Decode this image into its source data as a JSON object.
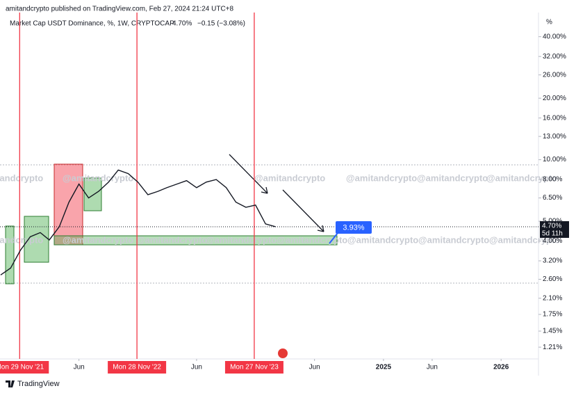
{
  "header": "amitandcrypto published on TradingView.com, Feb 27, 2024 21:24 UTC+8",
  "footer": "TradingView",
  "watermark": "@amitandcrypto",
  "chart_data": {
    "type": "line",
    "legend_text": "Market Cap USDT Dominance, %, 1W, CRYPTOCAP",
    "last_value": "4.70%",
    "change": "−0.15 (−3.08%)",
    "y_unit": "%",
    "price_tag": "4.70%",
    "countdown": "5d 11h",
    "target_label": "3.93%",
    "log_scale": true,
    "color": "#131722",
    "x": [
      "2021-10",
      "2021-11",
      "2021-12",
      "2022-01",
      "2022-02",
      "2022-03",
      "2022-04",
      "2022-05",
      "2022-06",
      "2022-07",
      "2022-08",
      "2022-09",
      "2022-10",
      "2022-11",
      "2022-12",
      "2023-01",
      "2023-02",
      "2023-03",
      "2023-04",
      "2023-05",
      "2023-06",
      "2023-07",
      "2023-08",
      "2023-09",
      "2023-10",
      "2023-11",
      "2023-12",
      "2024-01",
      "2024-02"
    ],
    "values": [
      2.73,
      2.95,
      3.6,
      4.2,
      4.4,
      4.05,
      4.7,
      6.2,
      7.6,
      6.5,
      7.0,
      7.77,
      8.9,
      8.55,
      7.77,
      6.74,
      7.0,
      7.3,
      7.6,
      7.9,
      7.3,
      7.77,
      8.0,
      7.3,
      6.2,
      5.85,
      6.0,
      4.85,
      4.7
    ],
    "xlim": [
      "2021-09-29",
      "2026-04-27"
    ],
    "xticks": [
      {
        "value": "2021-11-29",
        "label": "Mon 29 Nov '21"
      },
      {
        "value": "2022-06-01",
        "label": "Jun"
      },
      {
        "value": "2022-11-28",
        "label": "Mon 28 Nov '22"
      },
      {
        "value": "2023-06-01",
        "label": "Jun"
      },
      {
        "value": "2023-11-27",
        "label": "Mon 27 Nov '23"
      },
      {
        "value": "2024-06-01",
        "label": "Jun"
      },
      {
        "value": "2025-01-01",
        "label": "2025"
      },
      {
        "value": "2025-06-01",
        "label": "Jun"
      },
      {
        "value": "2026-01-01",
        "label": "2026"
      }
    ],
    "ylim": [
      1.06,
      52.5
    ],
    "yticks": [
      {
        "value": 1.21,
        "label": "1.21%"
      },
      {
        "value": 1.45,
        "label": "1.45%"
      },
      {
        "value": 1.75,
        "label": "1.75%"
      },
      {
        "value": 2.1,
        "label": "2.10%"
      },
      {
        "value": 2.6,
        "label": "2.60%"
      },
      {
        "value": 3.2,
        "label": "3.20%"
      },
      {
        "value": 4,
        "label": "4.00%"
      },
      {
        "value": 5,
        "label": "5.00%"
      },
      {
        "value": 6.5,
        "label": "6.50%"
      },
      {
        "value": 8,
        "label": "8.00%"
      },
      {
        "value": 10,
        "label": "10.00%"
      },
      {
        "value": 13,
        "label": "13.00%"
      },
      {
        "value": 16,
        "label": "16.00%"
      },
      {
        "value": 20,
        "label": "20.00%"
      },
      {
        "value": 26,
        "label": "26.00%"
      },
      {
        "value": 32,
        "label": "32.00%"
      },
      {
        "value": 40,
        "label": "40.00%"
      }
    ]
  }
}
